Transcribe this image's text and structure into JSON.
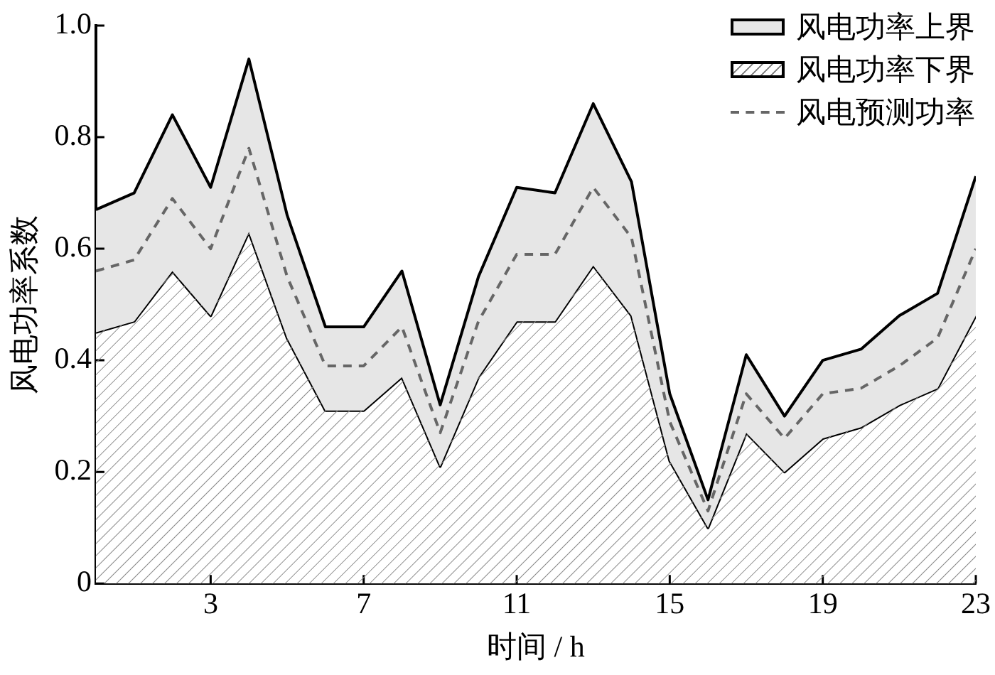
{
  "chart_data": {
    "type": "line",
    "xlabel": "时间 / h",
    "ylabel": "风电功率系数",
    "x": [
      0,
      1,
      2,
      3,
      4,
      5,
      6,
      7,
      8,
      9,
      10,
      11,
      12,
      13,
      14,
      15,
      16,
      17,
      18,
      19,
      20,
      21,
      22,
      23
    ],
    "series": [
      {
        "name": "风电功率上界",
        "type": "area",
        "color": "#e6e6e6",
        "values": [
          0.67,
          0.7,
          0.84,
          0.71,
          0.94,
          0.66,
          0.46,
          0.46,
          0.56,
          0.32,
          0.55,
          0.71,
          0.7,
          0.86,
          0.72,
          0.34,
          0.15,
          0.41,
          0.3,
          0.4,
          0.42,
          0.48,
          0.52,
          0.73
        ]
      },
      {
        "name": "风电功率下界",
        "type": "area",
        "color": "#ffffff",
        "values": [
          0.45,
          0.47,
          0.56,
          0.48,
          0.63,
          0.44,
          0.31,
          0.31,
          0.37,
          0.21,
          0.37,
          0.47,
          0.47,
          0.57,
          0.48,
          0.22,
          0.1,
          0.27,
          0.2,
          0.26,
          0.28,
          0.32,
          0.35,
          0.48
        ]
      },
      {
        "name": "风电预测功率",
        "type": "line",
        "color": "#666666",
        "line_style": "dashed",
        "values": [
          0.56,
          0.58,
          0.69,
          0.6,
          0.78,
          0.55,
          0.39,
          0.39,
          0.46,
          0.27,
          0.47,
          0.59,
          0.59,
          0.71,
          0.62,
          0.29,
          0.13,
          0.34,
          0.26,
          0.34,
          0.35,
          0.39,
          0.44,
          0.6
        ]
      }
    ],
    "xlim": [
      0,
      23
    ],
    "xticks": [
      3,
      7,
      11,
      15,
      19,
      23
    ],
    "ylim": [
      0,
      1
    ],
    "yticks": [
      0,
      0.2,
      0.4,
      0.6,
      0.8,
      {
        "value": 1,
        "label": "1.0"
      }
    ],
    "grid": false,
    "legend": "top right",
    "marker": "none"
  }
}
